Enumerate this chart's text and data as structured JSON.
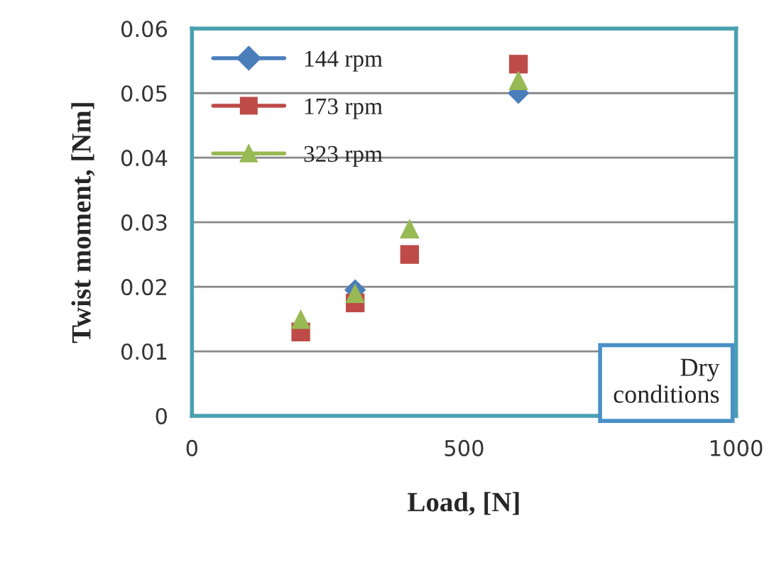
{
  "chart_data": {
    "type": "scatter",
    "xlabel": "Load, [N]",
    "ylabel": "Twist moment, [Nm]",
    "x": [
      200,
      300,
      400,
      600
    ],
    "series": [
      {
        "name": "144 rpm",
        "color": "#4a7ebb",
        "marker": "diamond",
        "values": [
          null,
          0.0195,
          null,
          0.05
        ]
      },
      {
        "name": "173 rpm",
        "color": "#be4b48",
        "marker": "square",
        "values": [
          0.013,
          0.0175,
          0.025,
          0.0545
        ]
      },
      {
        "name": "323 rpm",
        "color": "#98b954",
        "marker": "triangle",
        "values": [
          0.015,
          0.019,
          0.029,
          0.052
        ]
      }
    ],
    "xlim": [
      0,
      1000
    ],
    "xticks": [
      0,
      500,
      1000
    ],
    "ylim": [
      0,
      0.06
    ],
    "yticks": [
      0,
      0.01,
      0.02,
      0.03,
      0.04,
      0.05,
      0.06
    ],
    "grid": "y",
    "legend": "top left",
    "annotations": [
      "Dry\nconditions"
    ]
  }
}
